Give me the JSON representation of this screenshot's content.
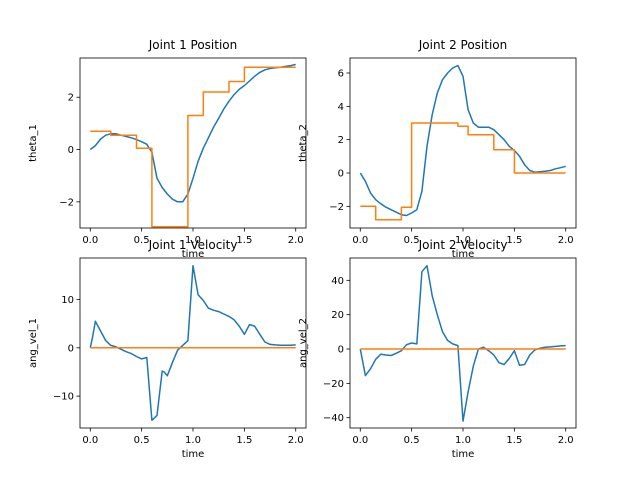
{
  "colors": {
    "blue": "#1f77b4",
    "orange": "#ff7f0e"
  },
  "chart_data": [
    {
      "type": "line",
      "title": "Joint 1 Position",
      "xlabel": "time",
      "ylabel": "theta_1",
      "xlim": [
        -0.1,
        2.1
      ],
      "ylim": [
        -3.0,
        3.5
      ],
      "xticks": [
        0.0,
        0.5,
        1.0,
        1.5,
        2.0
      ],
      "xtick_labels": [
        "0.0",
        "0.5",
        "1.0",
        "1.5",
        "2.0"
      ],
      "yticks": [
        -2,
        0,
        2
      ],
      "ytick_labels": [
        "−2",
        "0",
        "2"
      ],
      "series": [
        {
          "color": "#1f77b4",
          "step": false,
          "x": [
            0,
            0.05,
            0.1,
            0.15,
            0.2,
            0.25,
            0.3,
            0.35,
            0.4,
            0.45,
            0.5,
            0.55,
            0.6,
            0.65,
            0.7,
            0.75,
            0.8,
            0.85,
            0.9,
            0.95,
            1.0,
            1.05,
            1.1,
            1.15,
            1.2,
            1.25,
            1.3,
            1.35,
            1.4,
            1.45,
            1.5,
            1.55,
            1.6,
            1.65,
            1.7,
            1.75,
            1.8,
            1.85,
            1.9,
            1.95,
            2.0
          ],
          "y": [
            0.0,
            0.15,
            0.4,
            0.55,
            0.6,
            0.6,
            0.55,
            0.5,
            0.45,
            0.38,
            0.3,
            0.2,
            -0.1,
            -1.1,
            -1.45,
            -1.7,
            -1.9,
            -2.0,
            -2.0,
            -1.7,
            -1.1,
            -0.45,
            0.05,
            0.45,
            0.85,
            1.2,
            1.55,
            1.85,
            2.1,
            2.3,
            2.45,
            2.62,
            2.8,
            2.95,
            3.05,
            3.1,
            3.13,
            3.15,
            3.18,
            3.21,
            3.25
          ]
        },
        {
          "color": "#ff7f0e",
          "step": true,
          "x": [
            0,
            0.15,
            0.2,
            0.4,
            0.45,
            0.55,
            0.6,
            0.9,
            0.95,
            1.1,
            1.25,
            1.35,
            1.5,
            1.65,
            2.0
          ],
          "y": [
            0.7,
            0.7,
            0.55,
            0.55,
            0.05,
            0.05,
            -2.95,
            -2.95,
            1.3,
            2.2,
            2.2,
            2.6,
            3.15,
            3.15,
            3.15
          ]
        }
      ]
    },
    {
      "type": "line",
      "title": "Joint 2 Position",
      "xlabel": "time",
      "ylabel": "theta_2",
      "xlim": [
        -0.1,
        2.1
      ],
      "ylim": [
        -3.3,
        6.9
      ],
      "xticks": [
        0.0,
        0.5,
        1.0,
        1.5,
        2.0
      ],
      "xtick_labels": [
        "0.0",
        "0.5",
        "1.0",
        "1.5",
        "2.0"
      ],
      "yticks": [
        -2,
        0,
        2,
        4,
        6
      ],
      "ytick_labels": [
        "−2",
        "0",
        "2",
        "4",
        "6"
      ],
      "series": [
        {
          "color": "#1f77b4",
          "step": false,
          "x": [
            0,
            0.05,
            0.1,
            0.15,
            0.2,
            0.25,
            0.3,
            0.35,
            0.4,
            0.45,
            0.5,
            0.55,
            0.6,
            0.65,
            0.7,
            0.75,
            0.8,
            0.85,
            0.9,
            0.95,
            1.0,
            1.05,
            1.1,
            1.15,
            1.2,
            1.25,
            1.3,
            1.35,
            1.4,
            1.45,
            1.5,
            1.55,
            1.6,
            1.65,
            1.7,
            1.75,
            1.8,
            1.85,
            1.9,
            1.95,
            2.0
          ],
          "y": [
            0.0,
            -0.5,
            -1.2,
            -1.6,
            -1.85,
            -2.05,
            -2.2,
            -2.35,
            -2.5,
            -2.55,
            -2.4,
            -2.2,
            -1.1,
            1.6,
            3.5,
            4.8,
            5.6,
            6.0,
            6.3,
            6.45,
            5.8,
            3.8,
            3.0,
            2.75,
            2.75,
            2.75,
            2.6,
            2.3,
            2.0,
            1.6,
            1.35,
            1.0,
            0.5,
            0.15,
            0.05,
            0.07,
            0.1,
            0.15,
            0.25,
            0.32,
            0.4
          ]
        },
        {
          "color": "#ff7f0e",
          "step": true,
          "x": [
            0,
            0.15,
            0.3,
            0.4,
            0.5,
            0.95,
            1.05,
            1.25,
            1.3,
            1.45,
            1.5,
            2.0
          ],
          "y": [
            -2.0,
            -2.8,
            -2.8,
            -2.05,
            3.0,
            2.8,
            2.3,
            2.3,
            1.4,
            1.4,
            0.0,
            0.0
          ]
        }
      ]
    },
    {
      "type": "line",
      "title": "Joint 1 Velocity",
      "xlabel": "time",
      "ylabel": "ang_vel_1",
      "xlim": [
        -0.1,
        2.1
      ],
      "ylim": [
        -16.6,
        18.6
      ],
      "xticks": [
        0.0,
        0.5,
        1.0,
        1.5,
        2.0
      ],
      "xtick_labels": [
        "0.0",
        "0.5",
        "1.0",
        "1.5",
        "2.0"
      ],
      "yticks": [
        -10,
        0,
        10
      ],
      "ytick_labels": [
        "−10",
        "0",
        "10"
      ],
      "series": [
        {
          "color": "#1f77b4",
          "step": false,
          "x": [
            0,
            0.025,
            0.05,
            0.1,
            0.15,
            0.2,
            0.25,
            0.3,
            0.35,
            0.4,
            0.45,
            0.5,
            0.55,
            0.6,
            0.65,
            0.7,
            0.72,
            0.75,
            0.8,
            0.85,
            0.9,
            0.95,
            1.0,
            1.05,
            1.1,
            1.15,
            1.2,
            1.25,
            1.3,
            1.35,
            1.4,
            1.45,
            1.5,
            1.55,
            1.6,
            1.65,
            1.7,
            1.75,
            1.8,
            1.85,
            1.9,
            1.95,
            2.0
          ],
          "y": [
            0.0,
            2.5,
            5.5,
            3.5,
            1.5,
            0.5,
            0.2,
            -0.3,
            -0.8,
            -1.2,
            -1.8,
            -2.3,
            -2.0,
            -15.0,
            -14.0,
            -4.8,
            -5.0,
            -5.8,
            -3.0,
            -0.5,
            0.5,
            1.5,
            17.0,
            11.0,
            9.8,
            8.2,
            7.8,
            7.5,
            7.0,
            6.5,
            5.8,
            4.5,
            2.8,
            4.8,
            4.5,
            2.8,
            1.2,
            0.7,
            0.6,
            0.55,
            0.55,
            0.55,
            0.6
          ]
        },
        {
          "color": "#ff7f0e",
          "step": false,
          "x": [
            0,
            2.0
          ],
          "y": [
            0,
            0
          ]
        }
      ]
    },
    {
      "type": "line",
      "title": "Joint 2 Velocity",
      "xlabel": "time",
      "ylabel": "ang_vel_2",
      "xlim": [
        -0.1,
        2.1
      ],
      "ylim": [
        -46.0,
        53.0
      ],
      "xticks": [
        0.0,
        0.5,
        1.0,
        1.5,
        2.0
      ],
      "xtick_labels": [
        "0.0",
        "0.5",
        "1.0",
        "1.5",
        "2.0"
      ],
      "yticks": [
        -40,
        -20,
        0,
        20,
        40
      ],
      "ytick_labels": [
        "−40",
        "−20",
        "0",
        "20",
        "40"
      ],
      "series": [
        {
          "color": "#1f77b4",
          "step": false,
          "x": [
            0,
            0.05,
            0.1,
            0.15,
            0.2,
            0.25,
            0.3,
            0.35,
            0.4,
            0.45,
            0.5,
            0.55,
            0.6,
            0.65,
            0.7,
            0.75,
            0.8,
            0.85,
            0.9,
            0.95,
            1.0,
            1.05,
            1.1,
            1.15,
            1.2,
            1.25,
            1.3,
            1.35,
            1.4,
            1.45,
            1.5,
            1.55,
            1.6,
            1.65,
            1.7,
            1.75,
            1.8,
            1.85,
            1.9,
            1.95,
            2.0
          ],
          "y": [
            0.0,
            -15.5,
            -11.5,
            -6.0,
            -3.0,
            -3.5,
            -3.8,
            -2.5,
            -1.0,
            2.5,
            3.5,
            3.0,
            45.0,
            48.5,
            31.0,
            20.0,
            10.0,
            5.0,
            3.0,
            2.0,
            -42.0,
            -25.0,
            -10.0,
            0.0,
            1.0,
            -1.0,
            -3.5,
            -8.0,
            -9.0,
            -5.5,
            -1.0,
            -9.5,
            -9.0,
            -3.5,
            -0.5,
            0.5,
            1.0,
            1.2,
            1.5,
            1.8,
            2.0
          ]
        },
        {
          "color": "#ff7f0e",
          "step": false,
          "x": [
            0,
            2.0
          ],
          "y": [
            0,
            0
          ]
        }
      ]
    }
  ]
}
